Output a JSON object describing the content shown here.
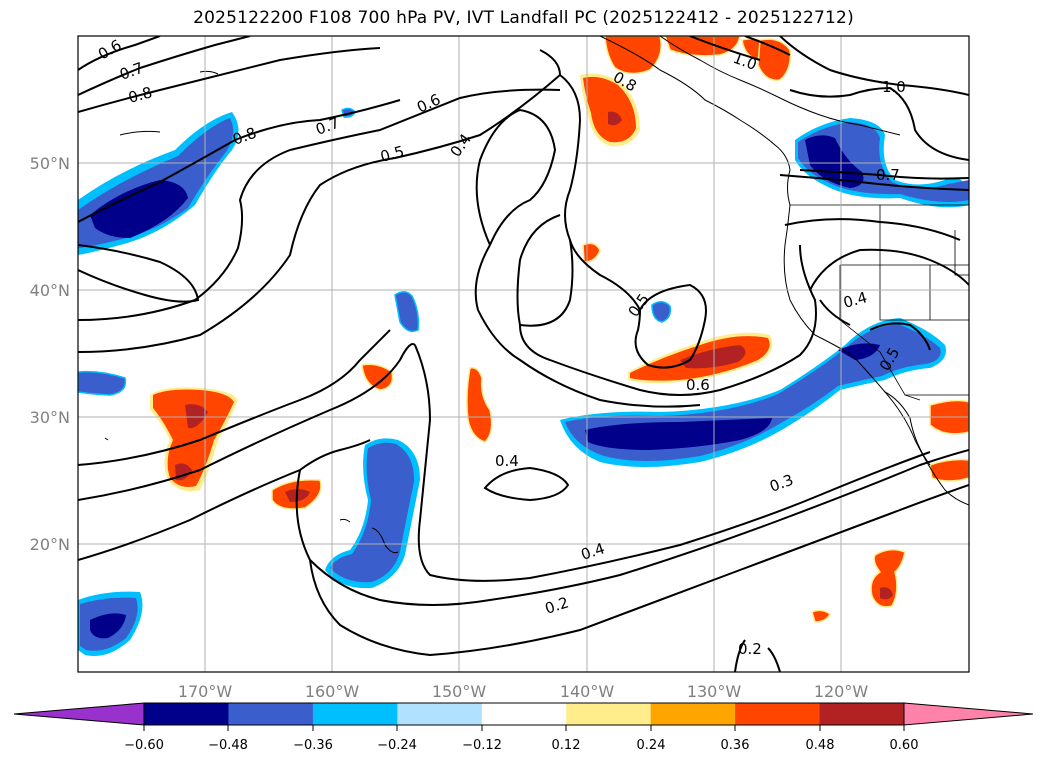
{
  "title": "2025122200 F108 700 hPa PV, IVT Landfall PC (2025122412 - 2025122712)",
  "lat_labels": [
    "50°N",
    "40°N",
    "30°N",
    "20°N"
  ],
  "lon_labels": [
    "170°W",
    "160°W",
    "150°W",
    "140°W",
    "130°W",
    "120°W"
  ],
  "contour_labels": [
    "0.6",
    "0.7",
    "0.8",
    "0.8",
    "0.7",
    "0.6",
    "0.5",
    "0.4",
    "0.8",
    "1.0",
    "1.0",
    "0.7",
    "0.4",
    "0.5",
    "0.5",
    "0.6",
    "0.4",
    "0.3",
    "0.4",
    "0.2",
    "0.2"
  ],
  "colorbar": {
    "ticks": [
      "−0.60",
      "−0.48",
      "−0.36",
      "−0.24",
      "−0.12",
      "0.12",
      "0.24",
      "0.36",
      "0.48",
      "0.60"
    ],
    "colors": {
      "under": "#9932cc",
      "bins": [
        "#00008b",
        "#3a5fcd",
        "#00bfff",
        "#b0e2ff",
        "#ffffff",
        "#ffec8b",
        "#ffa500",
        "#ff4500",
        "#b22222"
      ],
      "over": "#ff82ab"
    }
  },
  "colors": {
    "neg_dark": "#00008b",
    "neg_mid": "#3a5fcd",
    "neg_light": "#00bfff",
    "pos_light": "#ffec8b",
    "pos_mid": "#ff4500",
    "pos_dark": "#b22222",
    "grid": "#b0b0b0",
    "contour": "#000000"
  }
}
